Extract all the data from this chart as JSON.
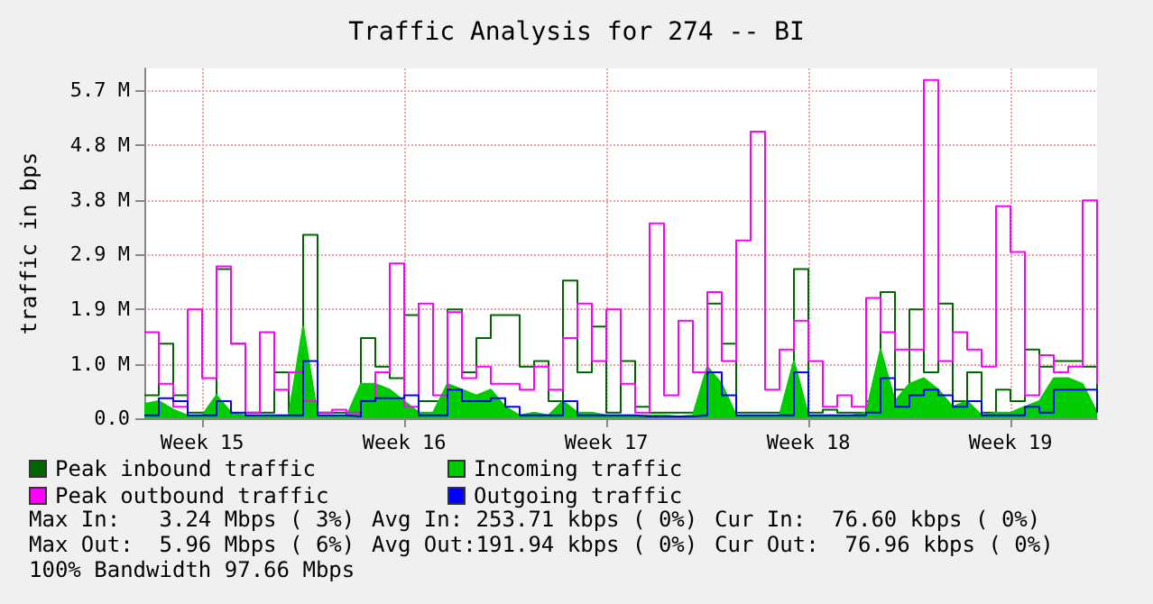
{
  "chart_data": {
    "type": "line",
    "title": "Traffic Analysis for 274 -- BI",
    "ylabel": "traffic in bps",
    "categories": [
      null,
      null,
      null,
      null,
      "Week 15",
      null,
      null,
      null,
      null,
      null,
      null,
      null,
      null,
      null,
      null,
      null,
      null,
      null,
      "Week 16",
      null,
      null,
      null,
      null,
      null,
      null,
      null,
      null,
      null,
      null,
      null,
      null,
      null,
      "Week 17",
      null,
      null,
      null,
      null,
      null,
      null,
      null,
      null,
      null,
      null,
      null,
      null,
      null,
      "Week 18",
      null,
      null,
      null,
      null,
      null,
      null,
      null,
      null,
      null,
      null,
      null,
      null,
      null,
      "Week 19",
      null,
      null,
      null,
      null,
      null,
      null
    ],
    "series": [
      {
        "name": "Peak inbound traffic",
        "type": "step",
        "color": "#006600",
        "values": [
          0.4,
          1.3,
          0.4,
          0.1,
          0.1,
          2.6,
          1.3,
          0.1,
          0.1,
          0.8,
          0.1,
          3.2,
          0.1,
          0.1,
          0.05,
          1.4,
          0.9,
          0.7,
          1.8,
          0.3,
          0.3,
          1.9,
          0.8,
          1.4,
          1.8,
          1.8,
          0.9,
          1.0,
          0.3,
          2.4,
          0.8,
          1.6,
          0.1,
          1.0,
          0.2,
          0.1,
          0.1,
          0.1,
          0.1,
          2.0,
          1.3,
          0.1,
          0.1,
          0.1,
          0.1,
          2.6,
          0.1,
          0.15,
          0.1,
          0.1,
          0.3,
          2.2,
          0.5,
          1.9,
          0.8,
          2.0,
          0.3,
          0.8,
          0.1,
          0.5,
          0.3,
          1.2,
          0.9,
          1.0,
          1.0,
          0.9,
          0.2
        ]
      },
      {
        "name": "Incoming traffic",
        "type": "area",
        "color": "#00cc00",
        "values": [
          0.25,
          0.3,
          0.15,
          0.05,
          0.05,
          0.4,
          0.1,
          0.05,
          0.05,
          0.05,
          0.05,
          1.6,
          0.05,
          0.05,
          0.03,
          0.6,
          0.6,
          0.5,
          0.3,
          0.1,
          0.1,
          0.6,
          0.5,
          0.4,
          0.5,
          0.2,
          0.05,
          0.1,
          0.05,
          0.3,
          0.1,
          0.1,
          0.05,
          0.05,
          0.05,
          0.05,
          0.05,
          0.03,
          0.05,
          0.9,
          0.6,
          0.05,
          0.05,
          0.05,
          0.05,
          1.0,
          0.05,
          0.05,
          0.05,
          0.05,
          0.1,
          1.2,
          0.3,
          0.6,
          0.7,
          0.5,
          0.2,
          0.3,
          0.05,
          0.1,
          0.1,
          0.2,
          0.3,
          0.7,
          0.7,
          0.6,
          0.1
        ]
      },
      {
        "name": "Peak outbound traffic",
        "type": "step",
        "color": "#ff00ff",
        "values": [
          1.5,
          0.6,
          0.2,
          1.9,
          0.7,
          2.65,
          1.3,
          0.1,
          1.5,
          0.5,
          0.8,
          0.3,
          0.1,
          0.15,
          0.1,
          0.3,
          0.8,
          2.7,
          0.2,
          2.0,
          0.4,
          1.85,
          0.7,
          0.9,
          0.6,
          0.6,
          0.5,
          0.9,
          0.5,
          1.4,
          2.0,
          1.0,
          1.9,
          0.6,
          0.1,
          3.4,
          0.4,
          1.7,
          0.8,
          2.2,
          1.0,
          3.1,
          5.0,
          0.5,
          1.2,
          1.7,
          1.0,
          0.2,
          0.4,
          0.2,
          2.1,
          1.5,
          1.2,
          1.2,
          5.9,
          1.0,
          1.5,
          1.2,
          0.9,
          3.7,
          2.9,
          0.4,
          1.1,
          0.8,
          0.9,
          3.8,
          0.6
        ]
      },
      {
        "name": "Outgoing traffic",
        "type": "step",
        "color": "#0000ff",
        "values": [
          0.05,
          0.35,
          0.3,
          0.05,
          0.05,
          0.3,
          0.1,
          0.05,
          0.05,
          0.05,
          0.05,
          1.0,
          0.05,
          0.05,
          0.03,
          0.3,
          0.35,
          0.35,
          0.4,
          0.05,
          0.05,
          0.5,
          0.3,
          0.3,
          0.35,
          0.2,
          0.05,
          0.05,
          0.05,
          0.3,
          0.05,
          0.05,
          0.05,
          0.05,
          0.03,
          0.03,
          0.03,
          0.03,
          0.05,
          0.8,
          0.4,
          0.05,
          0.05,
          0.05,
          0.05,
          0.8,
          0.05,
          0.05,
          0.05,
          0.05,
          0.1,
          0.7,
          0.2,
          0.4,
          0.5,
          0.4,
          0.2,
          0.3,
          0.05,
          0.05,
          0.05,
          0.2,
          0.1,
          0.5,
          0.5,
          0.5,
          0.1
        ]
      }
    ],
    "ylim": [
      0,
      6.1
    ],
    "yticks": [
      {
        "value": 0,
        "label": "0.0"
      },
      {
        "value": 0.95,
        "label": "1.0 M"
      },
      {
        "value": 1.91,
        "label": "1.9 M"
      },
      {
        "value": 2.86,
        "label": "2.9 M"
      },
      {
        "value": 3.81,
        "label": "3.8 M"
      },
      {
        "value": 4.77,
        "label": "4.8 M"
      },
      {
        "value": 5.72,
        "label": "5.7 M"
      }
    ],
    "grid": true,
    "legend": "bottom",
    "annotations": [
      "Max In:   3.24 Mbps ( 3%)",
      "Avg In: 253.71 kbps ( 0%)",
      "Cur In:  76.60 kbps ( 0%)",
      "Max Out:  5.96 Mbps ( 6%)",
      "Avg Out:191.94 kbps ( 0%)",
      "Cur Out:  76.96 kbps ( 0%)",
      "100% Bandwidth 97.66 Mbps"
    ]
  }
}
